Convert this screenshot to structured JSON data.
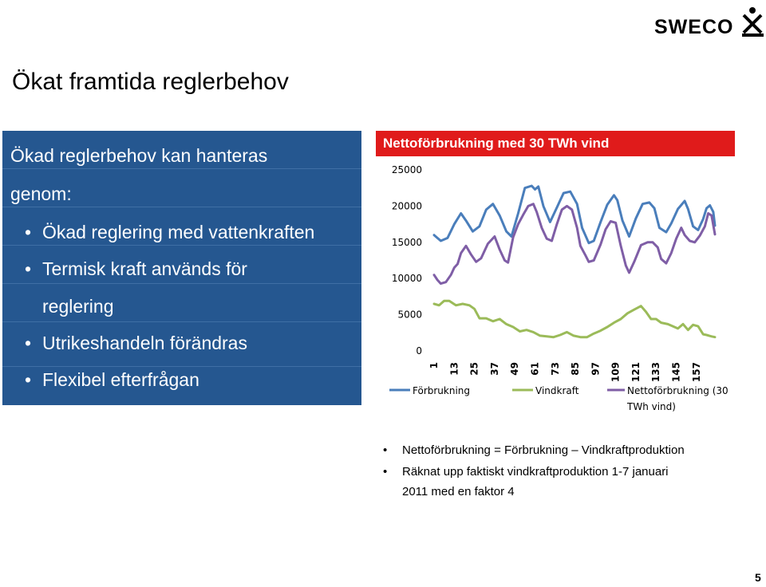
{
  "logo": {
    "text": "SWECO"
  },
  "slide": {
    "title": "Ökat framtida reglerbehov",
    "page_number": "5"
  },
  "left_panel": {
    "heading_line1": "Ökad reglerbehov kan hanteras",
    "heading_line2": "genom:",
    "bullets": [
      "Ökad reglering med vattenkraften",
      "Termisk kraft används för",
      "Utrikeshandeln förändras",
      "Flexibel efterfrågan"
    ],
    "bullet_cont": "reglering",
    "bullet_char": "•",
    "bg_color": "#255790"
  },
  "chart_header": {
    "title": "Nettoförbrukning med 30 TWh vind",
    "color": "#e01b1b"
  },
  "chart_data": {
    "type": "line",
    "ylim": [
      0,
      25000
    ],
    "yticks": [
      "0",
      "5000",
      "10000",
      "15000",
      "20000",
      "25000"
    ],
    "xticks": [
      "1",
      "13",
      "25",
      "37",
      "49",
      "61",
      "73",
      "85",
      "97",
      "109",
      "121",
      "133",
      "145",
      "157"
    ],
    "x_range": [
      1,
      168
    ],
    "series": [
      {
        "name": "Förbrukning",
        "color": "#4a7ebb",
        "points": [
          [
            1,
            16000
          ],
          [
            5,
            15200
          ],
          [
            9,
            15600
          ],
          [
            13,
            17500
          ],
          [
            17,
            19000
          ],
          [
            20,
            18000
          ],
          [
            24,
            16500
          ],
          [
            28,
            17200
          ],
          [
            32,
            19500
          ],
          [
            36,
            20300
          ],
          [
            40,
            18700
          ],
          [
            44,
            16500
          ],
          [
            47,
            15800
          ],
          [
            51,
            19000
          ],
          [
            55,
            22500
          ],
          [
            59,
            22800
          ],
          [
            61,
            22300
          ],
          [
            63,
            22700
          ],
          [
            66,
            20000
          ],
          [
            70,
            17800
          ],
          [
            74,
            19800
          ],
          [
            78,
            21800
          ],
          [
            82,
            22000
          ],
          [
            86,
            20300
          ],
          [
            89,
            17000
          ],
          [
            93,
            14900
          ],
          [
            96,
            15200
          ],
          [
            100,
            17800
          ],
          [
            104,
            20200
          ],
          [
            108,
            21500
          ],
          [
            110,
            20800
          ],
          [
            113,
            18000
          ],
          [
            117,
            15800
          ],
          [
            121,
            18300
          ],
          [
            125,
            20300
          ],
          [
            129,
            20500
          ],
          [
            132,
            19700
          ],
          [
            135,
            17000
          ],
          [
            139,
            16400
          ],
          [
            142,
            17600
          ],
          [
            146,
            19600
          ],
          [
            150,
            20700
          ],
          [
            152,
            19600
          ],
          [
            155,
            17200
          ],
          [
            158,
            16700
          ],
          [
            161,
            18200
          ],
          [
            163,
            19700
          ],
          [
            165,
            20100
          ],
          [
            167,
            19200
          ],
          [
            168,
            17300
          ]
        ]
      },
      {
        "name": "Vindkraft",
        "color": "#9bbb59",
        "points": [
          [
            1,
            6500
          ],
          [
            4,
            6300
          ],
          [
            7,
            6900
          ],
          [
            10,
            6900
          ],
          [
            14,
            6300
          ],
          [
            18,
            6500
          ],
          [
            22,
            6300
          ],
          [
            25,
            5800
          ],
          [
            28,
            4500
          ],
          [
            32,
            4500
          ],
          [
            36,
            4100
          ],
          [
            40,
            4400
          ],
          [
            44,
            3700
          ],
          [
            48,
            3300
          ],
          [
            52,
            2700
          ],
          [
            56,
            2900
          ],
          [
            60,
            2600
          ],
          [
            64,
            2100
          ],
          [
            68,
            2000
          ],
          [
            72,
            1900
          ],
          [
            76,
            2200
          ],
          [
            80,
            2600
          ],
          [
            84,
            2100
          ],
          [
            88,
            1900
          ],
          [
            92,
            1900
          ],
          [
            96,
            2400
          ],
          [
            100,
            2800
          ],
          [
            104,
            3300
          ],
          [
            108,
            3900
          ],
          [
            112,
            4400
          ],
          [
            116,
            5200
          ],
          [
            120,
            5700
          ],
          [
            124,
            6200
          ],
          [
            127,
            5400
          ],
          [
            130,
            4400
          ],
          [
            133,
            4400
          ],
          [
            136,
            3900
          ],
          [
            140,
            3700
          ],
          [
            143,
            3400
          ],
          [
            146,
            3100
          ],
          [
            149,
            3700
          ],
          [
            152,
            2900
          ],
          [
            155,
            3600
          ],
          [
            158,
            3400
          ],
          [
            161,
            2300
          ],
          [
            163,
            2200
          ],
          [
            166,
            2000
          ],
          [
            168,
            1900
          ]
        ]
      },
      {
        "name": "Nettoförbrukning (30 TWh vind)",
        "color": "#7f5ea6",
        "points": [
          [
            1,
            10500
          ],
          [
            3,
            9800
          ],
          [
            5,
            9300
          ],
          [
            8,
            9500
          ],
          [
            11,
            10500
          ],
          [
            13,
            11500
          ],
          [
            15,
            12000
          ],
          [
            17,
            13500
          ],
          [
            20,
            14500
          ],
          [
            23,
            13300
          ],
          [
            26,
            12300
          ],
          [
            29,
            12800
          ],
          [
            33,
            14800
          ],
          [
            37,
            15800
          ],
          [
            40,
            14000
          ],
          [
            43,
            12500
          ],
          [
            45,
            12200
          ],
          [
            48,
            15700
          ],
          [
            51,
            17500
          ],
          [
            54,
            18800
          ],
          [
            57,
            20000
          ],
          [
            60,
            20300
          ],
          [
            62,
            19200
          ],
          [
            65,
            17000
          ],
          [
            68,
            15500
          ],
          [
            71,
            15200
          ],
          [
            74,
            17500
          ],
          [
            77,
            19500
          ],
          [
            80,
            20000
          ],
          [
            83,
            19500
          ],
          [
            86,
            17000
          ],
          [
            88,
            14500
          ],
          [
            91,
            13200
          ],
          [
            93,
            12300
          ],
          [
            96,
            12500
          ],
          [
            100,
            14700
          ],
          [
            103,
            16800
          ],
          [
            106,
            17900
          ],
          [
            109,
            17700
          ],
          [
            112,
            14500
          ],
          [
            115,
            11800
          ],
          [
            117,
            10800
          ],
          [
            120,
            12300
          ],
          [
            124,
            14600
          ],
          [
            128,
            15000
          ],
          [
            131,
            15000
          ],
          [
            134,
            14300
          ],
          [
            136,
            12700
          ],
          [
            139,
            12100
          ],
          [
            142,
            13500
          ],
          [
            145,
            15500
          ],
          [
            148,
            17000
          ],
          [
            150,
            16000
          ],
          [
            153,
            15200
          ],
          [
            156,
            15000
          ],
          [
            159,
            15900
          ],
          [
            162,
            17200
          ],
          [
            164,
            19000
          ],
          [
            166,
            18700
          ],
          [
            168,
            16100
          ]
        ]
      }
    ],
    "legend": [
      "Förbrukning",
      "Vindkraft",
      "Nettoförbrukning (30",
      "TWh vind)"
    ],
    "grid": false
  },
  "notes": [
    "Nettoförbrukning = Förbrukning – Vindkraftproduktion",
    "Räknat upp faktiskt vindkraftproduktion 1-7 januari",
    "2011 med en faktor 4"
  ],
  "note_bullet": "•"
}
